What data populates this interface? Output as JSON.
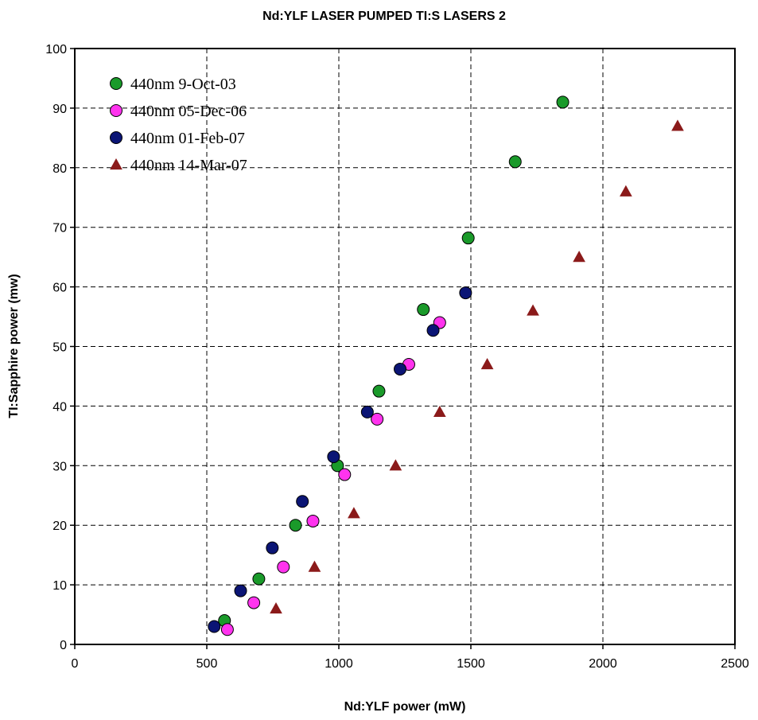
{
  "chart_data": {
    "type": "scatter",
    "title": "Nd:YLF LASER PUMPED TI:S LASERS 2",
    "xlabel": "Nd:YLF power (mW)",
    "ylabel": "TI:Sapphire power (mw)",
    "xlim": [
      0,
      2500
    ],
    "ylim": [
      0,
      100
    ],
    "xticks": [
      "0",
      "500",
      "1000",
      "1500",
      "2000",
      "2500"
    ],
    "yticks": [
      "0",
      "10",
      "20",
      "30",
      "40",
      "50",
      "60",
      "70",
      "80",
      "90",
      "100"
    ],
    "grid": true,
    "legend_position": "top-left",
    "series": [
      {
        "name": "440nm 9-Oct-03",
        "marker": "circle",
        "color": "#1a9a2a",
        "x": [
          567,
          697,
          836,
          995,
          1152,
          1320,
          1490,
          1668,
          1848
        ],
        "y": [
          4,
          11,
          20,
          30,
          42.5,
          56.2,
          68.2,
          81,
          91
        ]
      },
      {
        "name": "440nm 05-Dec-06",
        "marker": "circle",
        "color": "#ff33ee",
        "x": [
          578,
          678,
          790,
          902,
          1022,
          1145,
          1265,
          1382
        ],
        "y": [
          2.5,
          7,
          13,
          20.7,
          28.5,
          37.8,
          47,
          54
        ]
      },
      {
        "name": "440nm 01-Feb-07",
        "marker": "circle",
        "color": "#0b1575",
        "x": [
          528,
          628,
          748,
          862,
          980,
          1108,
          1232,
          1357,
          1480
        ],
        "y": [
          3,
          9,
          16.2,
          24,
          31.5,
          39,
          46.2,
          52.7,
          59
        ]
      },
      {
        "name": "440nm 14-Mar-07",
        "marker": "triangle",
        "color": "#8b1a1a",
        "x": [
          762,
          908,
          1057,
          1215,
          1382,
          1562,
          1735,
          1910,
          2087,
          2283
        ],
        "y": [
          6,
          13,
          22,
          30,
          39,
          47,
          56,
          65,
          76,
          87
        ]
      }
    ]
  }
}
